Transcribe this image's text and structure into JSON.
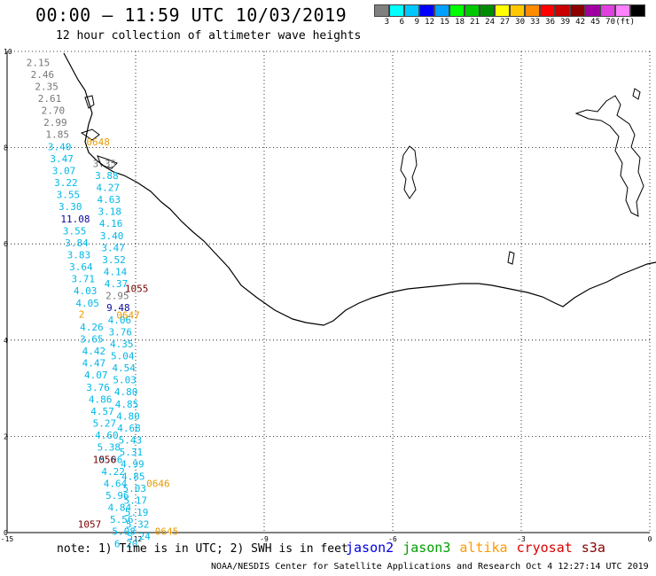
{
  "title": "00:00 – 11:59 UTC 10/03/2019",
  "subtitle": "12 hour collection of altimeter wave heights",
  "colorbar": {
    "colors": [
      "#808080",
      "#00ffff",
      "#00c8ff",
      "#0000ff",
      "#00a0ff",
      "#00ff00",
      "#00c800",
      "#008c00",
      "#ffff00",
      "#ffc800",
      "#ff8c00",
      "#ff0000",
      "#c80000",
      "#8c0000",
      "#a000a0",
      "#e040e0",
      "#ff80ff",
      "#000000"
    ],
    "labels": [
      "3",
      "6",
      "9",
      "12",
      "15",
      "18",
      "21",
      "24",
      "27",
      "30",
      "33",
      "36",
      "39",
      "42",
      "45",
      "70",
      "(ft)"
    ]
  },
  "axes": {
    "x_ticks": [
      "-15",
      "-12",
      "-9",
      "-6",
      "-3",
      "0"
    ],
    "y_ticks": [
      "0",
      "2",
      "4",
      "6",
      "8",
      "10"
    ]
  },
  "point_colors": {
    "gray": "#777777",
    "cyan": "#00b8e8",
    "blue": "#0a0aa0",
    "orange": "#e89a00",
    "dark": "#7a0000"
  },
  "points": [
    {
      "v": "2.15",
      "lon": -14.55,
      "lat": 9.7,
      "c": "gray"
    },
    {
      "v": "2.46",
      "lon": -14.45,
      "lat": 9.45,
      "c": "gray"
    },
    {
      "v": "2.35",
      "lon": -14.35,
      "lat": 9.2,
      "c": "gray"
    },
    {
      "v": "2.61",
      "lon": -14.28,
      "lat": 8.95,
      "c": "gray"
    },
    {
      "v": "2.70",
      "lon": -14.2,
      "lat": 8.7,
      "c": "gray"
    },
    {
      "v": "2.99",
      "lon": -14.15,
      "lat": 8.45,
      "c": "gray"
    },
    {
      "v": "1.85",
      "lon": -14.1,
      "lat": 8.2,
      "c": "gray"
    },
    {
      "v": "3.40",
      "lon": -14.05,
      "lat": 7.95,
      "c": "cyan"
    },
    {
      "v": "3.47",
      "lon": -14.0,
      "lat": 7.7,
      "c": "cyan"
    },
    {
      "v": "3.07",
      "lon": -13.95,
      "lat": 7.45,
      "c": "cyan"
    },
    {
      "v": "3.22",
      "lon": -13.9,
      "lat": 7.2,
      "c": "cyan"
    },
    {
      "v": "3.55",
      "lon": -13.85,
      "lat": 6.95,
      "c": "cyan"
    },
    {
      "v": "3.30",
      "lon": -13.8,
      "lat": 6.7,
      "c": "cyan"
    },
    {
      "v": "11.08",
      "lon": -13.75,
      "lat": 6.45,
      "c": "blue"
    },
    {
      "v": "3.55",
      "lon": -13.7,
      "lat": 6.2,
      "c": "cyan"
    },
    {
      "v": "3.84",
      "lon": -13.65,
      "lat": 5.95,
      "c": "cyan"
    },
    {
      "v": "3.83",
      "lon": -13.6,
      "lat": 5.7,
      "c": "cyan"
    },
    {
      "v": "3.64",
      "lon": -13.55,
      "lat": 5.45,
      "c": "cyan"
    },
    {
      "v": "3.71",
      "lon": -13.5,
      "lat": 5.2,
      "c": "cyan"
    },
    {
      "v": "4.03",
      "lon": -13.45,
      "lat": 4.95,
      "c": "cyan"
    },
    {
      "v": "4.05",
      "lon": -13.4,
      "lat": 4.7,
      "c": "cyan"
    },
    {
      "v": "2",
      "lon": -13.33,
      "lat": 4.47,
      "c": "orange"
    },
    {
      "v": "4.26",
      "lon": -13.3,
      "lat": 4.2,
      "c": "cyan"
    },
    {
      "v": "3.65",
      "lon": -13.3,
      "lat": 3.95,
      "c": "cyan"
    },
    {
      "v": "4.42",
      "lon": -13.25,
      "lat": 3.7,
      "c": "cyan"
    },
    {
      "v": "4.47",
      "lon": -13.25,
      "lat": 3.45,
      "c": "cyan"
    },
    {
      "v": "4.07",
      "lon": -13.2,
      "lat": 3.2,
      "c": "cyan"
    },
    {
      "v": "3.76",
      "lon": -13.15,
      "lat": 2.95,
      "c": "cyan"
    },
    {
      "v": "4.86",
      "lon": -13.1,
      "lat": 2.7,
      "c": "cyan"
    },
    {
      "v": "4.57",
      "lon": -13.05,
      "lat": 2.45,
      "c": "cyan"
    },
    {
      "v": "5.27",
      "lon": -13.0,
      "lat": 2.2,
      "c": "cyan"
    },
    {
      "v": "4.60",
      "lon": -12.95,
      "lat": 1.95,
      "c": "cyan"
    },
    {
      "v": "5.38",
      "lon": -12.9,
      "lat": 1.7,
      "c": "cyan"
    },
    {
      "v": "5.06",
      "lon": -12.85,
      "lat": 1.45,
      "c": "cyan"
    },
    {
      "v": "4.22",
      "lon": -12.8,
      "lat": 1.2,
      "c": "cyan"
    },
    {
      "v": "4.64",
      "lon": -12.75,
      "lat": 0.95,
      "c": "cyan"
    },
    {
      "v": "5.96",
      "lon": -12.7,
      "lat": 0.7,
      "c": "cyan"
    },
    {
      "v": "4.84",
      "lon": -12.65,
      "lat": 0.45,
      "c": "cyan"
    },
    {
      "v": "5.56",
      "lon": -12.6,
      "lat": 0.2,
      "c": "cyan"
    },
    {
      "v": "5.08",
      "lon": -12.55,
      "lat": -0.05,
      "c": "cyan"
    },
    {
      "v": "6.20",
      "lon": -12.5,
      "lat": -0.3,
      "c": "cyan"
    },
    {
      "v": "3.35",
      "lon": -13.0,
      "lat": 7.6,
      "c": "gray"
    },
    {
      "v": "3.88",
      "lon": -12.95,
      "lat": 7.35,
      "c": "cyan"
    },
    {
      "v": "4.27",
      "lon": -12.92,
      "lat": 7.1,
      "c": "cyan"
    },
    {
      "v": "4.63",
      "lon": -12.9,
      "lat": 6.85,
      "c": "cyan"
    },
    {
      "v": "3.18",
      "lon": -12.88,
      "lat": 6.6,
      "c": "cyan"
    },
    {
      "v": "4.16",
      "lon": -12.85,
      "lat": 6.35,
      "c": "cyan"
    },
    {
      "v": "3.40",
      "lon": -12.83,
      "lat": 6.1,
      "c": "cyan"
    },
    {
      "v": "3.47",
      "lon": -12.8,
      "lat": 5.85,
      "c": "cyan"
    },
    {
      "v": "3.52",
      "lon": -12.78,
      "lat": 5.6,
      "c": "cyan"
    },
    {
      "v": "4.14",
      "lon": -12.75,
      "lat": 5.35,
      "c": "cyan"
    },
    {
      "v": "4.37",
      "lon": -12.73,
      "lat": 5.1,
      "c": "cyan"
    },
    {
      "v": "2.95",
      "lon": -12.7,
      "lat": 4.85,
      "c": "gray"
    },
    {
      "v": "9.48",
      "lon": -12.68,
      "lat": 4.6,
      "c": "blue"
    },
    {
      "v": "4.06",
      "lon": -12.65,
      "lat": 4.35,
      "c": "cyan"
    },
    {
      "v": "3.76",
      "lon": -12.63,
      "lat": 4.1,
      "c": "cyan"
    },
    {
      "v": "4.35",
      "lon": -12.6,
      "lat": 3.85,
      "c": "cyan"
    },
    {
      "v": "5.04",
      "lon": -12.58,
      "lat": 3.6,
      "c": "cyan"
    },
    {
      "v": "4.54",
      "lon": -12.55,
      "lat": 3.35,
      "c": "cyan"
    },
    {
      "v": "5.03",
      "lon": -12.53,
      "lat": 3.1,
      "c": "cyan"
    },
    {
      "v": "4.80",
      "lon": -12.5,
      "lat": 2.85,
      "c": "cyan"
    },
    {
      "v": "4.85",
      "lon": -12.48,
      "lat": 2.6,
      "c": "cyan"
    },
    {
      "v": "4.80",
      "lon": -12.45,
      "lat": 2.35,
      "c": "cyan"
    },
    {
      "v": "4.68",
      "lon": -12.43,
      "lat": 2.1,
      "c": "cyan"
    },
    {
      "v": "5.43",
      "lon": -12.4,
      "lat": 1.85,
      "c": "cyan"
    },
    {
      "v": "5.31",
      "lon": -12.38,
      "lat": 1.6,
      "c": "cyan"
    },
    {
      "v": "4.99",
      "lon": -12.35,
      "lat": 1.35,
      "c": "cyan"
    },
    {
      "v": "4.85",
      "lon": -12.33,
      "lat": 1.1,
      "c": "cyan"
    },
    {
      "v": "5.03",
      "lon": -12.3,
      "lat": 0.85,
      "c": "cyan"
    },
    {
      "v": "5.17",
      "lon": -12.28,
      "lat": 0.6,
      "c": "cyan"
    },
    {
      "v": "5.19",
      "lon": -12.25,
      "lat": 0.35,
      "c": "cyan"
    },
    {
      "v": "5.32",
      "lon": -12.23,
      "lat": 0.1,
      "c": "cyan"
    },
    {
      "v": "5.24",
      "lon": -12.2,
      "lat": -0.15,
      "c": "cyan"
    }
  ],
  "times": [
    {
      "t": "0648",
      "lon": -13.15,
      "lat": 8.05,
      "c": "orange"
    },
    {
      "t": "1055",
      "lon": -12.25,
      "lat": 5.0,
      "c": "dark"
    },
    {
      "t": "0647",
      "lon": -12.45,
      "lat": 4.45,
      "c": "orange"
    },
    {
      "t": "1056",
      "lon": -13.0,
      "lat": 1.45,
      "c": "dark"
    },
    {
      "t": "0646",
      "lon": -11.75,
      "lat": 0.95,
      "c": "orange"
    },
    {
      "t": "1057",
      "lon": -13.35,
      "lat": 0.1,
      "c": "dark"
    },
    {
      "t": "0645",
      "lon": -11.55,
      "lat": -0.05,
      "c": "orange"
    }
  ],
  "note": "note: 1) Time is in UTC; 2) SWH is in feet",
  "legend": [
    {
      "name": "jason2",
      "color": "#0000dd"
    },
    {
      "name": "jason3",
      "color": "#00a000"
    },
    {
      "name": "altika",
      "color": "#ff9900"
    },
    {
      "name": "cryosat",
      "color": "#dd0000"
    },
    {
      "name": "s3a",
      "color": "#880000"
    }
  ],
  "footer": "NOAA/NESDIS Center for Satellite Applications and Research   Oct  4 12:27:14 UTC 2019"
}
